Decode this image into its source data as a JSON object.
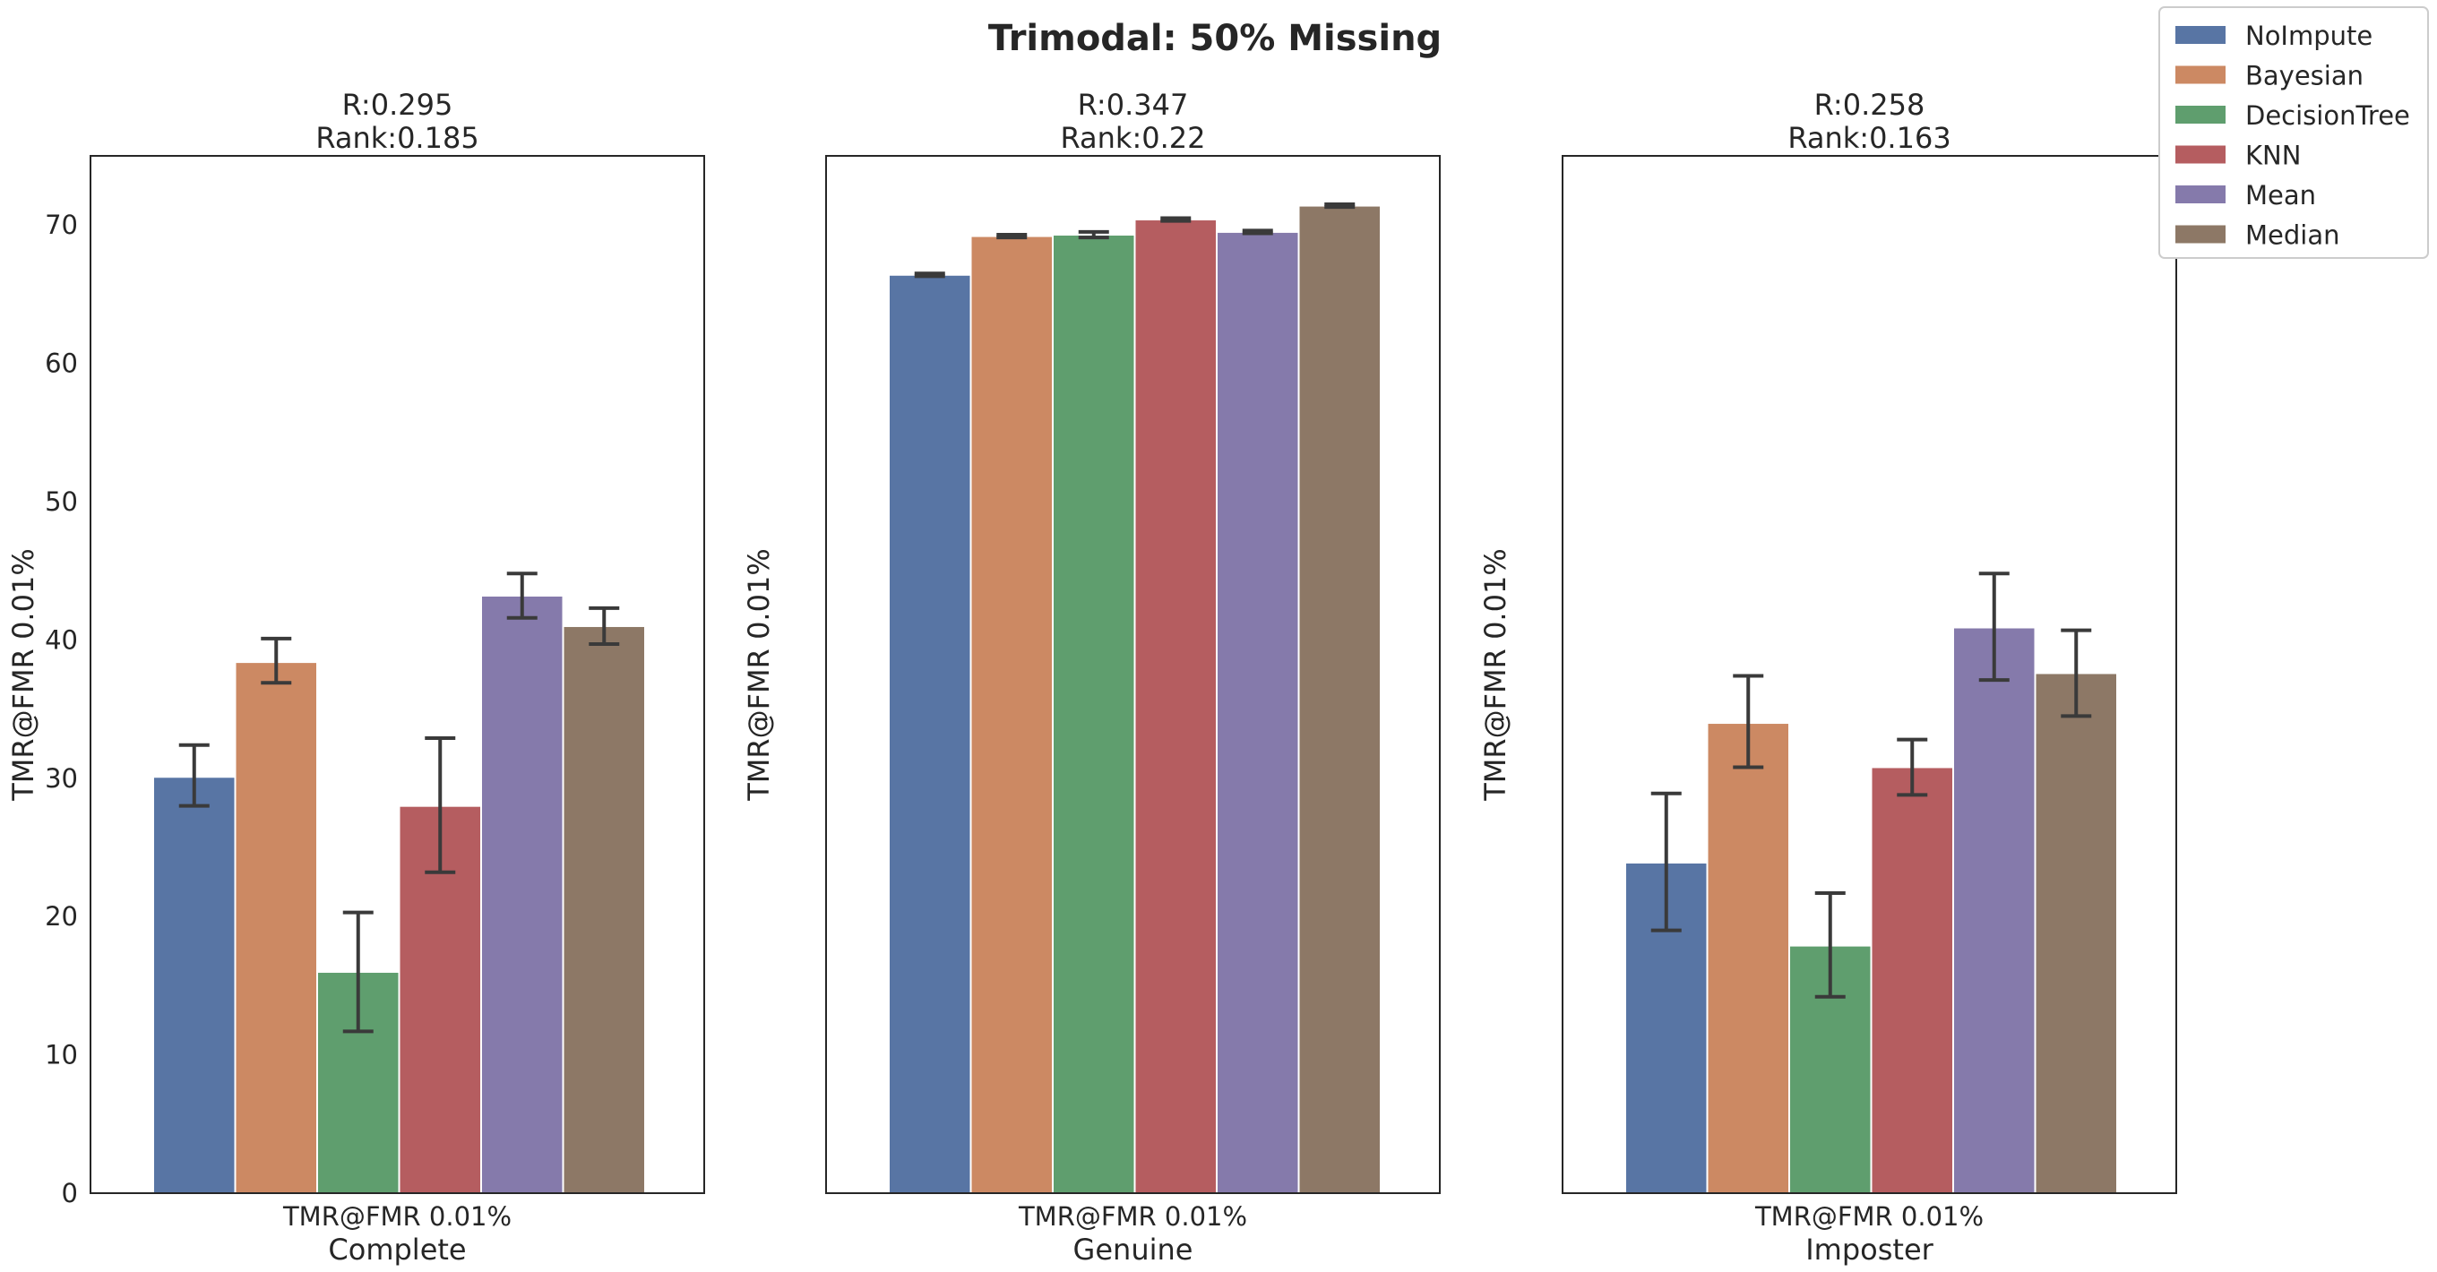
{
  "figure": {
    "suptitle": "Trimodal: 50% Missing"
  },
  "legend": {
    "placement": "top-right",
    "entries": [
      {
        "name": "NoImpute",
        "color": "#5875a4"
      },
      {
        "name": "Bayesian",
        "color": "#cc8963"
      },
      {
        "name": "DecisionTree",
        "color": "#5f9e6e"
      },
      {
        "name": "KNN",
        "color": "#b55d60"
      },
      {
        "name": "Mean",
        "color": "#857aab"
      },
      {
        "name": "Median",
        "color": "#8d7866"
      }
    ]
  },
  "chart_data": [
    {
      "type": "bar",
      "title_line1": "R:0.295",
      "title_line2": "Rank:0.185",
      "category_tick": "TMR@FMR 0.01%",
      "xlabel": "Complete",
      "ylabel": "TMR@FMR 0.01%",
      "ylim": [
        0,
        75
      ],
      "yticks": [
        0,
        10,
        20,
        30,
        40,
        50,
        60,
        70
      ],
      "show_ytick_labels": true,
      "grid": false,
      "series": [
        {
          "name": "NoImpute",
          "value": 30.1,
          "err_low": 28.0,
          "err_high": 32.4
        },
        {
          "name": "Bayesian",
          "value": 38.4,
          "err_low": 36.9,
          "err_high": 40.1
        },
        {
          "name": "DecisionTree",
          "value": 16.0,
          "err_low": 11.7,
          "err_high": 20.3
        },
        {
          "name": "KNN",
          "value": 28.0,
          "err_low": 23.2,
          "err_high": 32.9
        },
        {
          "name": "Mean",
          "value": 43.2,
          "err_low": 41.6,
          "err_high": 44.8
        },
        {
          "name": "Median",
          "value": 41.0,
          "err_low": 39.7,
          "err_high": 42.3
        }
      ]
    },
    {
      "type": "bar",
      "title_line1": "R:0.347",
      "title_line2": "Rank:0.22",
      "category_tick": "TMR@FMR 0.01%",
      "xlabel": "Genuine",
      "ylabel": "TMR@FMR 0.01%",
      "ylim": [
        0,
        75
      ],
      "yticks": [
        0,
        10,
        20,
        30,
        40,
        50,
        60,
        70
      ],
      "show_ytick_labels": false,
      "grid": false,
      "series": [
        {
          "name": "NoImpute",
          "value": 66.4,
          "err_low": 66.3,
          "err_high": 66.5
        },
        {
          "name": "Bayesian",
          "value": 69.2,
          "err_low": 69.1,
          "err_high": 69.3
        },
        {
          "name": "DecisionTree",
          "value": 69.3,
          "err_low": 69.1,
          "err_high": 69.5
        },
        {
          "name": "KNN",
          "value": 70.4,
          "err_low": 70.3,
          "err_high": 70.5
        },
        {
          "name": "Mean",
          "value": 69.5,
          "err_low": 69.4,
          "err_high": 69.6
        },
        {
          "name": "Median",
          "value": 71.4,
          "err_low": 71.3,
          "err_high": 71.5
        }
      ]
    },
    {
      "type": "bar",
      "title_line1": "R:0.258",
      "title_line2": "Rank:0.163",
      "category_tick": "TMR@FMR 0.01%",
      "xlabel": "Imposter",
      "ylabel": "TMR@FMR 0.01%",
      "ylim": [
        0,
        75
      ],
      "yticks": [
        0,
        10,
        20,
        30,
        40,
        50,
        60,
        70
      ],
      "show_ytick_labels": false,
      "grid": false,
      "series": [
        {
          "name": "NoImpute",
          "value": 23.9,
          "err_low": 19.0,
          "err_high": 28.9
        },
        {
          "name": "Bayesian",
          "value": 34.0,
          "err_low": 30.8,
          "err_high": 37.4
        },
        {
          "name": "DecisionTree",
          "value": 17.9,
          "err_low": 14.2,
          "err_high": 21.7
        },
        {
          "name": "KNN",
          "value": 30.8,
          "err_low": 28.8,
          "err_high": 32.8
        },
        {
          "name": "Mean",
          "value": 40.9,
          "err_low": 37.1,
          "err_high": 44.8
        },
        {
          "name": "Median",
          "value": 37.6,
          "err_low": 34.5,
          "err_high": 40.7
        }
      ]
    }
  ]
}
